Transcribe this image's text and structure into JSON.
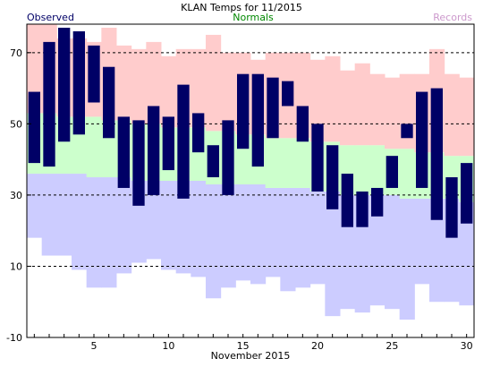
{
  "chart_data": {
    "type": "bar",
    "title": "KLAN Temps for 11/2015",
    "legend": [
      {
        "label": "Observed",
        "color": "#000066",
        "position": "top-left"
      },
      {
        "label": "Normals",
        "color": "#008800",
        "position": "top-center"
      },
      {
        "label": "Records",
        "color": "#cc99cc",
        "position": "top-right"
      }
    ],
    "xlabel": "November 2015",
    "xlim": [
      1,
      30
    ],
    "xticks": [
      "5",
      "10",
      "15",
      "20",
      "25",
      "30"
    ],
    "ylim": [
      -10,
      78
    ],
    "yticks": [
      "-10",
      "10",
      "30",
      "50",
      "70"
    ],
    "grid_dashed_at": [
      10,
      30,
      50,
      70
    ],
    "days": [
      1,
      2,
      3,
      4,
      5,
      6,
      7,
      8,
      9,
      10,
      11,
      12,
      13,
      14,
      15,
      16,
      17,
      18,
      19,
      20,
      21,
      22,
      23,
      24,
      25,
      26,
      27,
      28,
      29,
      30
    ],
    "series": [
      {
        "name": "Observed",
        "high": [
          59,
          73,
          77,
          76,
          72,
          66,
          52,
          51,
          55,
          52,
          61,
          53,
          44,
          51,
          64,
          64,
          63,
          62,
          55,
          50,
          44,
          36,
          31,
          32,
          41,
          50,
          59,
          60,
          35,
          39
        ],
        "low": [
          39,
          38,
          45,
          47,
          56,
          46,
          32,
          27,
          30,
          37,
          29,
          42,
          35,
          30,
          43,
          38,
          46,
          55,
          45,
          31,
          26,
          21,
          21,
          24,
          32,
          46,
          32,
          23,
          18,
          22
        ]
      },
      {
        "name": "Normals",
        "high": [
          53,
          53,
          52,
          52,
          52,
          51,
          51,
          50,
          50,
          49,
          49,
          49,
          48,
          48,
          47,
          47,
          46,
          46,
          46,
          45,
          45,
          44,
          44,
          44,
          43,
          43,
          42,
          42,
          41,
          41
        ],
        "low": [
          36,
          36,
          36,
          36,
          35,
          35,
          35,
          34,
          34,
          34,
          34,
          34,
          33,
          33,
          33,
          33,
          32,
          32,
          32,
          31,
          31,
          30,
          30,
          30,
          30,
          29,
          29,
          29,
          29,
          28
        ]
      },
      {
        "name": "Records",
        "high": [
          79,
          78,
          74,
          74,
          73,
          77,
          72,
          71,
          73,
          69,
          71,
          71,
          75,
          70,
          70,
          68,
          70,
          70,
          70,
          68,
          69,
          65,
          67,
          64,
          63,
          64,
          64,
          71,
          64,
          63
        ],
        "low": [
          18,
          13,
          13,
          9,
          4,
          4,
          8,
          11,
          12,
          9,
          8,
          7,
          1,
          4,
          6,
          5,
          7,
          3,
          4,
          5,
          -4,
          -2,
          -3,
          -1,
          -2,
          -5,
          5,
          0,
          0,
          -1
        ]
      }
    ],
    "colors": {
      "observed": "#000066",
      "normal_band": "#ccffcc",
      "record_high_band": "#ffcccc",
      "record_low_band": "#ccccff",
      "grid": "#000000"
    }
  }
}
